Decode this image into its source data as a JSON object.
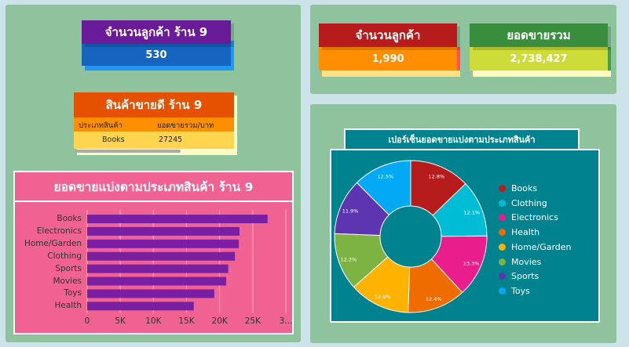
{
  "kpi_store_customers": {
    "title": "จำนวนลูกค้า ร้าน 9",
    "value": "530",
    "title_color": "#6a1b9a",
    "value_color": "#1565c0"
  },
  "kpi_customers": {
    "title": "จำนวนลูกค้า",
    "value": "1,990",
    "title_color": "#b71c1c",
    "value_color": "#ff8f00"
  },
  "kpi_sales": {
    "title": "ยอดขายรวม",
    "value": "2,738,427",
    "title_color": "#388e3c",
    "value_color": "#cddc39"
  },
  "top_product": {
    "title": "สินค้าขายดี ร้าน 9",
    "columns": [
      "ประเภทสินค้า",
      "ยอดขายรวม/บาท"
    ],
    "rows": [
      [
        "Books",
        "27245"
      ]
    ]
  },
  "bar_panel": {
    "title": "ยอดขายแบ่งตามประเภทสินค้า ร้าน 9"
  },
  "donut_panel": {
    "title": "เปอร์เซ็นยอดขายแบ่งตามประเภทสินค้า"
  },
  "chart_data": [
    {
      "type": "bar",
      "orientation": "horizontal",
      "categories": [
        "Books",
        "Electronics",
        "Home/Garden",
        "Clothing",
        "Sports",
        "Movies",
        "Toys",
        "Health"
      ],
      "values": [
        27245,
        23000,
        22900,
        22300,
        21300,
        21000,
        19200,
        16100
      ],
      "xticks": [
        "0",
        "5K",
        "10K",
        "15K",
        "20K",
        "25K",
        "3..."
      ],
      "xlim": [
        0,
        30000
      ],
      "color": "#7b1fa2",
      "grid": true
    },
    {
      "type": "pie",
      "donut": true,
      "labels": [
        "Books",
        "Clothing",
        "Electronics",
        "Health",
        "Home/Garden",
        "Movies",
        "Sports",
        "Toys"
      ],
      "values": [
        12.8,
        12.1,
        13.3,
        12.4,
        12.9,
        12.2,
        11.9,
        12.5
      ],
      "value_labels": [
        "12.8%",
        "12.1%",
        "13.3%",
        "12.4%",
        "12.9%",
        "12.2%",
        "11.9%",
        "12.5%"
      ],
      "colors": [
        "#b71c1c",
        "#00bcd4",
        "#e91e8c",
        "#ef6c00",
        "#ffb300",
        "#7cb342",
        "#5e35b1",
        "#03a9f4"
      ],
      "legend": "right"
    }
  ]
}
